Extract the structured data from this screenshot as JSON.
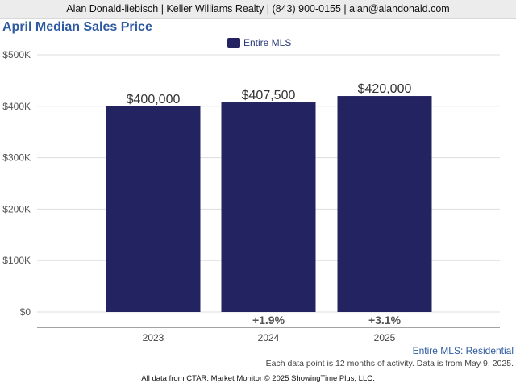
{
  "header": {
    "agent_line": "Alan Donald-liebisch | Keller Williams Realty | (843) 900-0155 | alan@alandonald.com"
  },
  "chart_data": {
    "type": "bar",
    "title": "April Median Sales Price",
    "categories": [
      "2023",
      "2024",
      "2025"
    ],
    "series": [
      {
        "name": "Entire MLS",
        "color": "#232361",
        "values": [
          400000,
          407500,
          420000
        ],
        "value_labels": [
          "$400,000",
          "$407,500",
          "$420,000"
        ],
        "change_labels": [
          "",
          "+1.9%",
          "+3.1%"
        ]
      }
    ],
    "yticks": [
      0,
      100000,
      200000,
      300000,
      400000,
      500000
    ],
    "ytick_labels": [
      "$0",
      "$100K",
      "$200K",
      "$300K",
      "$400K",
      "$500K"
    ],
    "ylim": [
      0,
      500000
    ],
    "grid": true,
    "legend_position": "top-center"
  },
  "footer": {
    "note": "Entire MLS: Residential",
    "subnote": "Each data point is 12 months of activity. Data is from May 9, 2025.",
    "credit": "All data from CTAR. Market Monitor © 2025 ShowingTime Plus, LLC."
  }
}
